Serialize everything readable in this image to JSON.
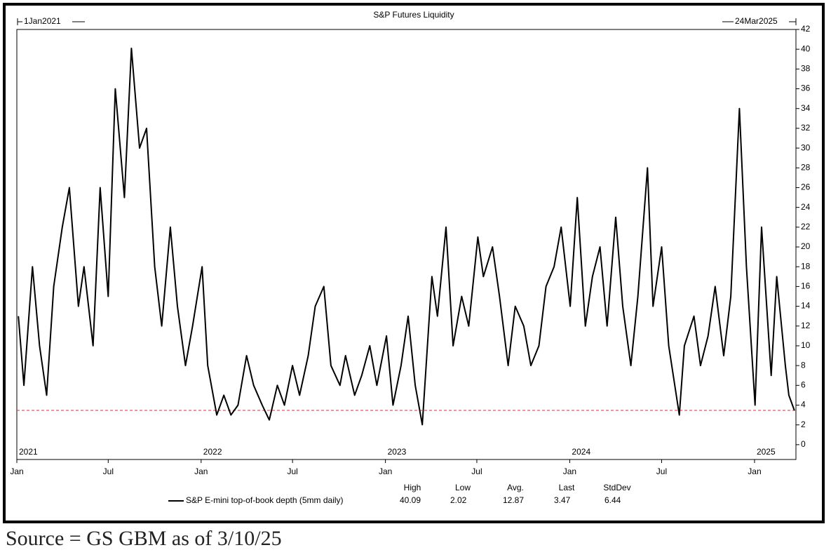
{
  "chart_data": {
    "type": "line",
    "title": "S&P Futures Liquidity",
    "start_label": "1Jan2021",
    "end_label": "24Mar2025",
    "xlim": [
      "2021-01-01",
      "2025-03-24"
    ],
    "ylim": [
      -1.5,
      42
    ],
    "yticks": [
      0,
      2,
      4,
      6,
      8,
      10,
      12,
      14,
      16,
      18,
      20,
      22,
      24,
      26,
      28,
      30,
      32,
      34,
      36,
      38,
      40,
      42
    ],
    "xticks": [
      {
        "value": "2021-01-01",
        "label": "Jan"
      },
      {
        "value": "2021-07-01",
        "label": "Jul"
      },
      {
        "value": "2022-01-01",
        "label": "Jan"
      },
      {
        "value": "2022-07-01",
        "label": "Jul"
      },
      {
        "value": "2023-01-01",
        "label": "Jan"
      },
      {
        "value": "2023-07-01",
        "label": "Jul"
      },
      {
        "value": "2024-01-01",
        "label": "Jan"
      },
      {
        "value": "2024-07-01",
        "label": "Jul"
      },
      {
        "value": "2025-01-01",
        "label": "Jan"
      }
    ],
    "year_ticks": [
      {
        "value": "2021-01-01",
        "label": "2021"
      },
      {
        "value": "2022-01-01",
        "label": "2022"
      },
      {
        "value": "2023-01-01",
        "label": "2023"
      },
      {
        "value": "2024-01-01",
        "label": "2024"
      },
      {
        "value": "2025-01-01",
        "label": "2025"
      }
    ],
    "x": [
      "2021-01-04",
      "2021-01-15",
      "2021-02-01",
      "2021-02-15",
      "2021-03-01",
      "2021-03-15",
      "2021-04-01",
      "2021-04-15",
      "2021-05-03",
      "2021-05-14",
      "2021-06-01",
      "2021-06-15",
      "2021-07-01",
      "2021-07-15",
      "2021-08-02",
      "2021-08-16",
      "2021-09-01",
      "2021-09-15",
      "2021-10-01",
      "2021-10-15",
      "2021-11-01",
      "2021-11-15",
      "2021-12-01",
      "2021-12-15",
      "2022-01-03",
      "2022-01-14",
      "2022-02-01",
      "2022-02-15",
      "2022-03-01",
      "2022-03-15",
      "2022-04-01",
      "2022-04-15",
      "2022-05-02",
      "2022-05-16",
      "2022-06-01",
      "2022-06-15",
      "2022-07-01",
      "2022-07-15",
      "2022-08-01",
      "2022-08-15",
      "2022-09-01",
      "2022-09-15",
      "2022-10-03",
      "2022-10-14",
      "2022-11-01",
      "2022-11-15",
      "2022-12-01",
      "2022-12-15",
      "2023-01-03",
      "2023-01-16",
      "2023-02-01",
      "2023-02-15",
      "2023-03-01",
      "2023-03-15",
      "2023-04-03",
      "2023-04-14",
      "2023-05-01",
      "2023-05-15",
      "2023-06-01",
      "2023-06-15",
      "2023-07-03",
      "2023-07-14",
      "2023-08-01",
      "2023-08-15",
      "2023-09-01",
      "2023-09-15",
      "2023-10-02",
      "2023-10-16",
      "2023-11-01",
      "2023-11-15",
      "2023-12-01",
      "2023-12-15",
      "2024-01-02",
      "2024-01-16",
      "2024-02-01",
      "2024-02-15",
      "2024-03-01",
      "2024-03-15",
      "2024-04-01",
      "2024-04-15",
      "2024-05-01",
      "2024-05-15",
      "2024-06-03",
      "2024-06-14",
      "2024-07-01",
      "2024-07-15",
      "2024-08-05",
      "2024-08-15",
      "2024-09-03",
      "2024-09-16",
      "2024-10-01",
      "2024-10-15",
      "2024-11-01",
      "2024-11-15",
      "2024-12-02",
      "2024-12-16",
      "2025-01-02",
      "2025-01-15",
      "2025-02-03",
      "2025-02-14",
      "2025-03-03",
      "2025-03-10",
      "2025-03-21"
    ],
    "series": [
      {
        "name": "S&P E-mini top-of-book depth (5mm daily)",
        "color": "#000000",
        "values": [
          13,
          6,
          18,
          10,
          5,
          16,
          22,
          26,
          14,
          18,
          10,
          26,
          15,
          36,
          25,
          40.09,
          30,
          32,
          18,
          12,
          22,
          14,
          8,
          12,
          18,
          8,
          3,
          5,
          3,
          4,
          9,
          6,
          4,
          2.5,
          6,
          4,
          8,
          5,
          9,
          14,
          16,
          8,
          6,
          9,
          5,
          7,
          10,
          6,
          11,
          4,
          8,
          13,
          6,
          2.02,
          17,
          13,
          22,
          10,
          15,
          12,
          21,
          17,
          20,
          15,
          8,
          14,
          12,
          8,
          10,
          16,
          18,
          22,
          14,
          25,
          12,
          17,
          20,
          12,
          23,
          14,
          8,
          15,
          28,
          14,
          20,
          10,
          3,
          10,
          13,
          8,
          11,
          16,
          9,
          15,
          34,
          18,
          4,
          22,
          7,
          17,
          8,
          5,
          3.47
        ]
      }
    ],
    "reference_line": {
      "value": 3.47,
      "color": "#e03030"
    },
    "stats": {
      "headers": [
        "High",
        "Low",
        "Avg.",
        "Last",
        "StdDev"
      ],
      "values": [
        "40.09",
        "2.02",
        "12.87",
        "3.47",
        "6.44"
      ]
    },
    "source": "Source = GS GBM as of 3/10/25"
  }
}
